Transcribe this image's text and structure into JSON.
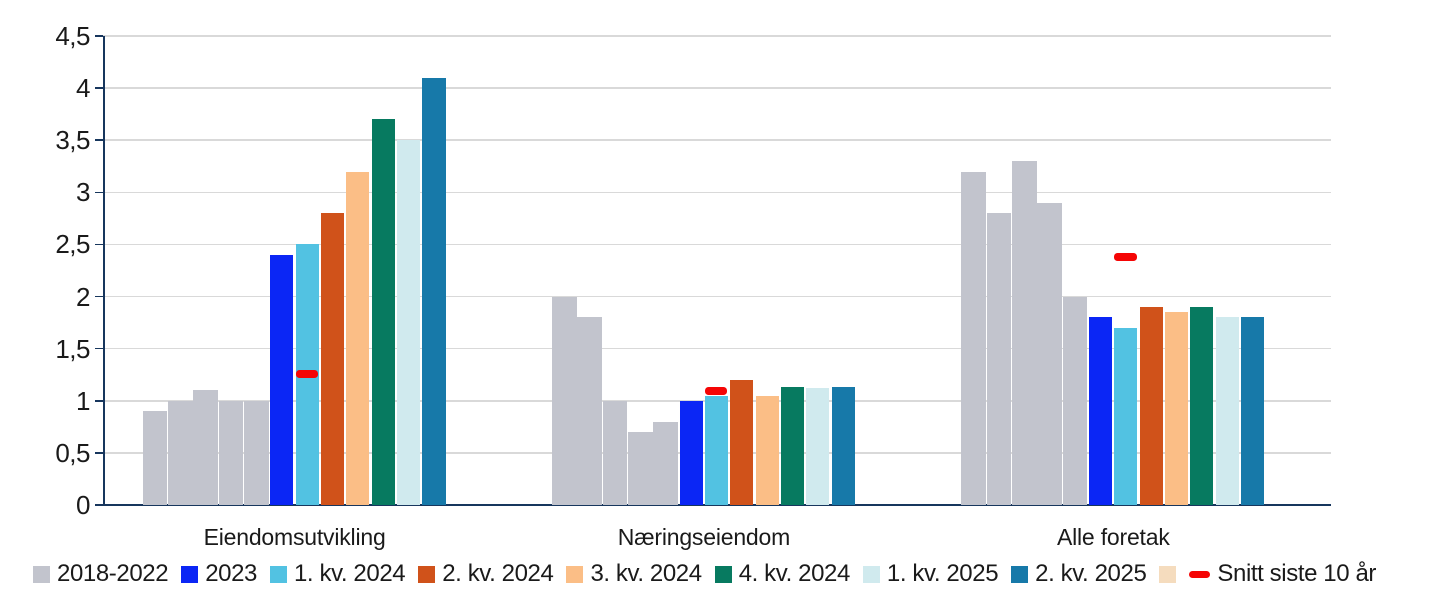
{
  "chart_data": {
    "type": "bar",
    "title": "",
    "categories": [
      "Eiendomsutvikling",
      "Næringseiendom",
      "Alle foretak"
    ],
    "y_axis": {
      "min": 0,
      "max": 4.5,
      "step": 0.5,
      "tick_labels": [
        "0",
        "0,5",
        "1",
        "1,5",
        "2",
        "2,5",
        "3",
        "3,5",
        "4",
        "4,5"
      ]
    },
    "grid": true,
    "legend_position": "bottom",
    "series": [
      {
        "name": "2018-2022",
        "kind": "bar-multi",
        "color": "#C2C4CD",
        "values_per_category": [
          [
            0.9,
            1.0,
            1.1,
            1.0,
            1.0
          ],
          [
            2.0,
            1.8,
            1.0,
            0.7,
            0.8
          ],
          [
            3.2,
            2.8,
            3.3,
            2.9,
            2.0
          ]
        ]
      },
      {
        "name": "2023",
        "kind": "bar",
        "color": "#0B26F5",
        "values": [
          2.4,
          1.0,
          1.8
        ]
      },
      {
        "name": "1. kv. 2024",
        "kind": "bar",
        "color": "#52C2E2",
        "values": [
          2.5,
          1.05,
          1.7
        ]
      },
      {
        "name": "2. kv. 2024",
        "kind": "bar",
        "color": "#D0521A",
        "values": [
          2.8,
          1.2,
          1.9
        ]
      },
      {
        "name": "3. kv. 2024",
        "kind": "bar",
        "color": "#FBBE86",
        "values": [
          3.2,
          1.05,
          1.85
        ]
      },
      {
        "name": "4. kv. 2024",
        "kind": "bar",
        "color": "#077A60",
        "values": [
          3.7,
          1.13,
          1.9
        ]
      },
      {
        "name": "1. kv. 2025",
        "kind": "bar",
        "color": "#D0EAEE",
        "values": [
          3.5,
          1.12,
          1.8
        ]
      },
      {
        "name": "2. kv. 2025",
        "kind": "bar",
        "color": "#1779A9",
        "values": [
          4.1,
          1.13,
          1.8
        ]
      },
      {
        "name": "",
        "kind": "legend-only",
        "color": "#F5DCBE"
      },
      {
        "name": "Snitt siste 10 år",
        "kind": "dash-marker",
        "color": "#F50505",
        "values": [
          1.26,
          1.09,
          2.38
        ],
        "marker_over": "1. kv. 2024"
      }
    ],
    "colors": {
      "gridline": "#D9D9D9",
      "axis": "#17365D",
      "text": "#1A1A1A"
    }
  }
}
